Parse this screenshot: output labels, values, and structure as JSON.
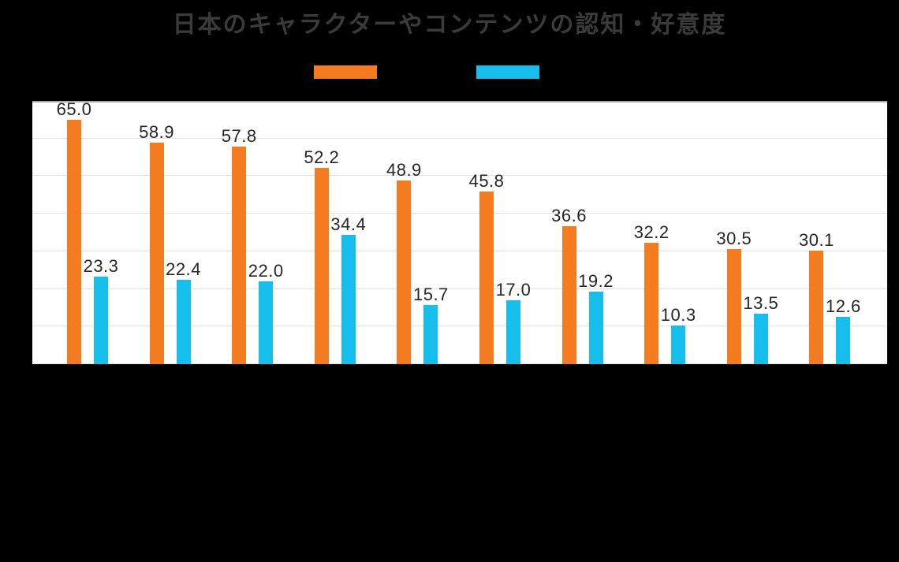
{
  "title": "日本のキャラクターやコンテンツの認知・好意度",
  "legend": {
    "items": [
      {
        "name": "series-1",
        "color": "#F47B20",
        "label": ""
      },
      {
        "name": "series-2",
        "color": "#16BEEB",
        "label": ""
      }
    ],
    "position": "top"
  },
  "chart_data": {
    "type": "bar",
    "title": "日本のキャラクターやコンテンツの認知・好意度",
    "group_count": 10,
    "series": [
      {
        "name": "series-1",
        "color": "#F47B20",
        "values": [
          65.0,
          58.9,
          57.8,
          52.2,
          48.9,
          45.8,
          36.6,
          32.2,
          30.5,
          30.1
        ]
      },
      {
        "name": "series-2",
        "color": "#16BEEB",
        "values": [
          23.3,
          22.4,
          22.0,
          34.4,
          15.7,
          17.0,
          19.2,
          10.3,
          13.5,
          12.6
        ]
      }
    ],
    "data_labels": true,
    "label_decimals": 1,
    "ylim": [
      0,
      70
    ],
    "grid": true,
    "grid_interval": 10,
    "legend_position": "top",
    "x_tick_labels_visible": false,
    "y_tick_labels_visible": false
  },
  "colors": {
    "background": "#000000",
    "plot_background": "#FFFFFF",
    "gridline": "#E2E2E2",
    "plot_top_border": "#A6A6A6",
    "data_label": "#262626",
    "title": "#3B3B3B"
  }
}
